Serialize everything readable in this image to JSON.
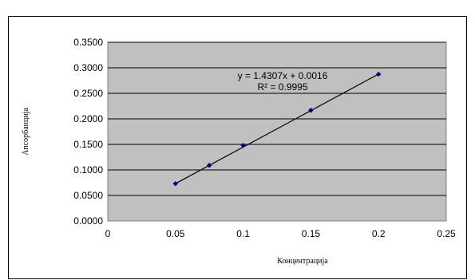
{
  "chart_data": {
    "type": "scatter",
    "title": "",
    "xlabel": "Концентрација",
    "ylabel": "Апсорбанција",
    "xlim": [
      0,
      0.25
    ],
    "ylim": [
      0,
      0.35
    ],
    "x_ticks": [
      "0",
      "0.05",
      "0.1",
      "0.15",
      "0.2",
      "0.25"
    ],
    "y_ticks": [
      "0.0000",
      "0.0500",
      "0.1000",
      "0.1500",
      "0.2000",
      "0.2500",
      "0.3000",
      "0.3500"
    ],
    "grid": "horizontal",
    "plot_background": "#c0c0c0",
    "marker_color": "#000080",
    "line_color": "#000000",
    "series": [
      {
        "x": [
          0.05,
          0.075,
          0.1,
          0.15,
          0.2
        ],
        "y": [
          0.0731,
          0.1089,
          0.1479,
          0.2168,
          0.2874
        ]
      }
    ],
    "trendline": {
      "slope": 1.4307,
      "intercept": 0.0016,
      "x_range": [
        0.05,
        0.2
      ]
    },
    "annotations": {
      "equation": "y = 1.4307x + 0.0016",
      "r_squared": "R² = 0.9995"
    }
  }
}
